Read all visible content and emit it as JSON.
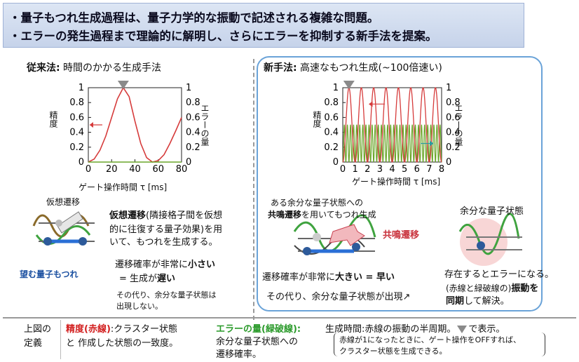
{
  "banner": {
    "line1": "・量子もつれ生成過程は、量子力学的な振動で記述される複雑な問題。",
    "line2": "・エラーの発生過程まで理論的に解明し、さらにエラーを抑制する新手法を提案。"
  },
  "left": {
    "heading_bold": "従来法:",
    "heading_rest": " 時間のかかる生成手法",
    "chart_xlabel": "ゲート操作時間 τ [ms]",
    "chart_ylabel_left": "精度",
    "chart_ylabel_right": "エラーの量",
    "label_virtual": "仮想遷移",
    "label_desired": "望む量子もつれ",
    "desc_bold": "仮想遷移",
    "desc_rest1": "(隣接格子間を仮想",
    "desc_line2": "的に往復する量子効果)を用",
    "desc_line3": "いて、もつれを生成する。",
    "prob_line1a": "遷移確率が非常に",
    "prob_line1b": "小さい",
    "prob_line2a": "=  生成が",
    "prob_line2b": "遅い",
    "note1": "その代り、余分な量子状態は",
    "note2": "出現しない。"
  },
  "right": {
    "heading_bold": "新手法:",
    "heading_rest": "  高速なもつれ生成(~100倍速い)",
    "chart_xlabel": "ゲート操作時間 τ [ms]",
    "chart_ylabel_left": "精度",
    "chart_ylabel_right": "エラーの量",
    "res_line1": "ある余分な量子状態への",
    "res_bold": "共鳴遷移",
    "res_line2": "を用いてもつれ生成",
    "resonance_label": "共鳴遷移",
    "extra_state": "余分な量子状態",
    "prob_a": "遷移確率が非常に",
    "prob_b": "大きい = 早い",
    "note": "その代り、余分な量子状態が出現↗",
    "err1": "存在するとエラーになる。",
    "err2a": "(赤線と緑破線の)",
    "err2b": "振動を",
    "err3a": "同期",
    "err3b": "して解決。"
  },
  "footer": {
    "def_line1": "上図の",
    "def_line2": "定義",
    "acc_title": "精度(赤線)",
    "acc_line1": ":クラスター状態",
    "acc_line2": "と 作成した状態の一致度。",
    "err_title": "エラーの量(緑破線):",
    "err_line1": "余分な量子状態への",
    "err_line2": "遷移確率。",
    "time_line": "生成時間:赤線の振動の半周期。",
    "time_tail": "で表示。",
    "paren_line1": "赤線が1になったときに、ゲート操作をOFFすれば、",
    "paren_line2": "クラスター状態を生成できる。"
  },
  "colors": {
    "red": "#d63b3b",
    "green": "#6aa62a",
    "arrow_gray": "#8a8a8a",
    "box_blue": "#6aa3d8"
  },
  "chart_data": [
    {
      "type": "line",
      "title": "",
      "xlabel": "ゲート操作時間 τ [ms]",
      "ylabel": "精度",
      "ylabel_right": "エラーの量",
      "xlim": [
        0,
        80
      ],
      "ylim": [
        0,
        1
      ],
      "xticks": [
        0,
        20,
        40,
        60,
        80
      ],
      "yticks": [
        0,
        0.2,
        0.4,
        0.6,
        0.8,
        1
      ],
      "series": [
        {
          "color": "#d63b3b",
          "x": [
            0,
            5,
            10,
            15,
            20,
            25,
            30,
            35,
            40,
            45,
            50,
            55,
            60,
            65,
            70,
            75,
            80
          ],
          "y": [
            0,
            0.04,
            0.16,
            0.35,
            0.6,
            0.85,
            1.0,
            0.88,
            0.55,
            0.25,
            0.06,
            0,
            0.02,
            0.1,
            0.25,
            0.42,
            0.6
          ]
        },
        {
          "color": "#6aa62a",
          "x": [
            0,
            80
          ],
          "y": [
            0,
            0
          ]
        }
      ]
    },
    {
      "type": "line",
      "title": "",
      "xlabel": "ゲート操作時間 τ [ms]",
      "ylabel": "精度",
      "ylabel_right": "エラーの量",
      "xlim": [
        0,
        8
      ],
      "ylim": [
        0,
        1
      ],
      "xticks": [
        0,
        1,
        2,
        3,
        4,
        5,
        6,
        7,
        8
      ],
      "yticks": [
        0,
        0.2,
        0.4,
        0.6,
        0.8,
        1
      ],
      "red_period": 0.5,
      "red_peak_x": 0.5,
      "green_period": 0.25,
      "green_max": 0.5
    }
  ]
}
